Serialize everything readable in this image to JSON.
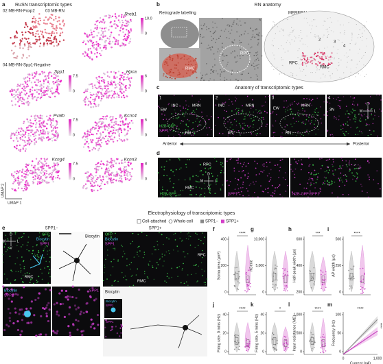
{
  "panel_a": {
    "letter": "a",
    "title": "RuSN transcriptomic types",
    "clusters": [
      "02 MB-RN-Foxp2",
      "03 MB-RN",
      "04 MB-RN-Spp1-Negative"
    ],
    "genes": [
      {
        "name": "Rreb1",
        "max": "10.0",
        "min": "0"
      },
      {
        "name": "Spp1",
        "max": "7.5",
        "min": "0"
      },
      {
        "name": "Hpca",
        "max": "6",
        "min": "0"
      },
      {
        "name": "Pvalb",
        "max": "7.5",
        "min": "0"
      },
      {
        "name": "Kcnc4",
        "max": "6",
        "min": "0"
      },
      {
        "name": "Kcng4",
        "max": "7.5",
        "min": "0"
      },
      {
        "name": "Kcnn3",
        "max": "8",
        "min": "0"
      }
    ],
    "y_axis": "UMAP 2",
    "x_axis": "UMAP 1"
  },
  "panel_b": {
    "letter": "b",
    "title": "RN anatomy",
    "left": {
      "title": "Retrograde labelling",
      "regions": [
        "RPC",
        "RMC"
      ]
    },
    "right": {
      "title": "MERFISH",
      "clusters": [
        "2",
        "3",
        "4"
      ],
      "regions": [
        "RPC",
        "RMC"
      ]
    }
  },
  "panel_c": {
    "letter": "c",
    "title": "Anatomy of transcriptomic types",
    "sections": [
      {
        "number": "1",
        "labels": [
          "EW",
          "INC",
          "MRN",
          "RN"
        ],
        "channels": [
          "H2B-GFP",
          "SPP1"
        ]
      },
      {
        "number": "2",
        "labels": [
          "INC",
          "MRN",
          "RN"
        ]
      },
      {
        "number": "3",
        "labels": [
          "EW",
          "MRN",
          "RN"
        ]
      },
      {
        "number": "4",
        "labels": [
          "3N"
        ],
        "compass": [
          "D",
          "V",
          "M",
          "L"
        ]
      }
    ],
    "axis_start": "Anterior",
    "axis_end": "Posterior"
  },
  "panel_d": {
    "letter": "d",
    "regions": [
      "RPC",
      "RMC"
    ],
    "compass": [
      "D",
      "V",
      "M",
      "L"
    ],
    "channels": [
      "H2B-GFP",
      "SPP1",
      "H2B-GFP/SPP1"
    ]
  },
  "section_title": "Electrophysiology of transcriptomic types",
  "legend": [
    "Cell-attached",
    "Whole-cell",
    "SPP1−",
    "SPP1+"
  ],
  "panel_e": {
    "letter": "e",
    "negative": "SPP1−",
    "positive": "SPP1+",
    "stain_labels": [
      "GFP",
      "Biocytin",
      "SPP1"
    ],
    "compass": [
      "D",
      "V",
      "M",
      "L"
    ],
    "rmc": "RMC",
    "rpc": "RPC",
    "biocytin": "Biocytin",
    "bottom_labels": [
      "Biocytin",
      "SPP1"
    ],
    "spp1": "SPP1"
  },
  "plots": [
    {
      "letter": "f",
      "y_label": "Soma area (μm²)",
      "significance": "****",
      "yticks": [
        "400",
        "200",
        "0"
      ]
    },
    {
      "letter": "g",
      "y_label": "nGene",
      "significance": "",
      "yticks": [
        "10,000",
        "5,000",
        "0"
      ]
    },
    {
      "letter": "h",
      "y_label": "Half-peak width (μs)",
      "significance": "***",
      "yticks": [
        "600",
        "400",
        "200"
      ]
    },
    {
      "letter": "i",
      "y_label": "AP width (μs)",
      "significance": "****",
      "yticks": [
        "500",
        "250",
        "0"
      ]
    },
    {
      "letter": "j",
      "y_label": "Firing rate, 0 mins (Hz)",
      "significance": "****",
      "yticks": [
        "40",
        "20",
        "0"
      ]
    },
    {
      "letter": "k",
      "y_label": "Firing rate, 5 mins (Hz)",
      "significance": "*",
      "yticks": [
        "40",
        "20",
        "0"
      ]
    },
    {
      "letter": "l",
      "y_label": "Input resistance (MΩ)",
      "significance": "****",
      "yticks": [
        "1,000",
        "500",
        "0"
      ]
    },
    {
      "letter": "m",
      "y_label": "Frequency (Hz)",
      "x_label": "Current (pA)",
      "significance": "****",
      "yticks": [
        "100",
        "50",
        "0"
      ],
      "xticks": [
        "0",
        "1,000"
      ]
    }
  ]
}
